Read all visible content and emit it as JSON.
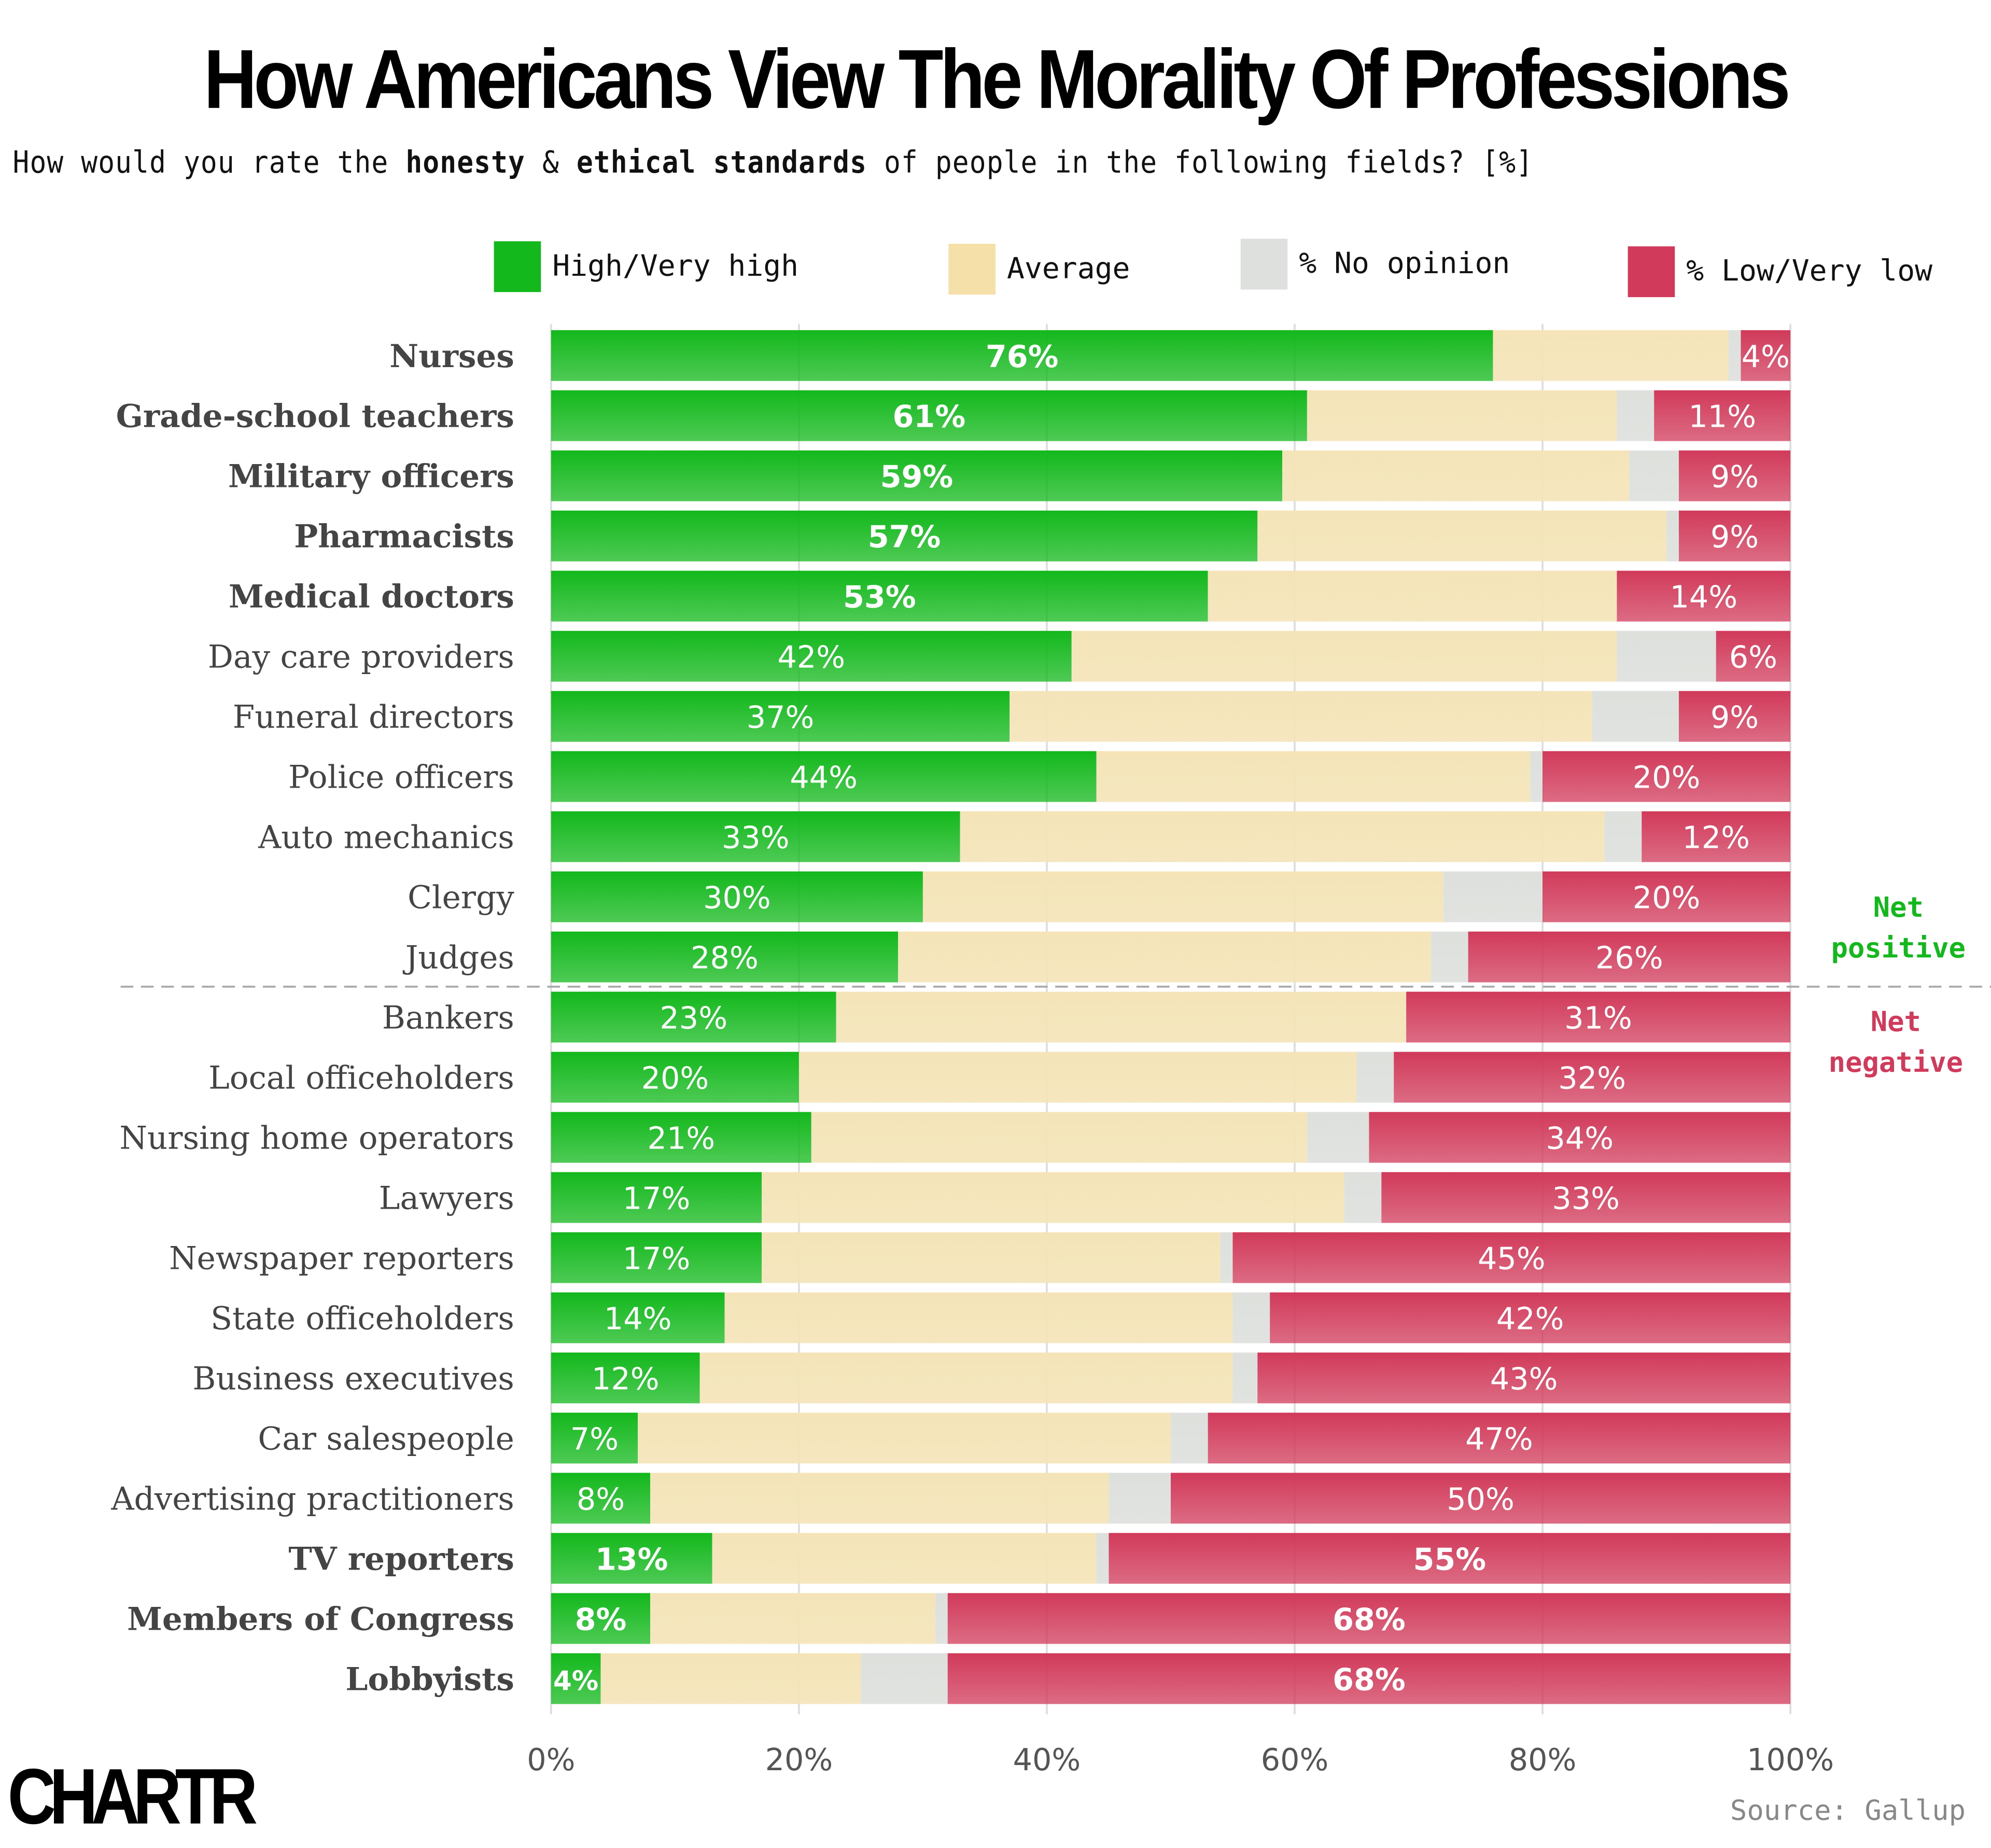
{
  "chart_data": {
    "type": "bar",
    "orientation": "horizontal",
    "stacked": true,
    "title": "How Americans View The Morality Of Professions",
    "subtitle_parts": [
      "How would you rate the ",
      "honesty",
      " & ",
      "ethical standards",
      " of people in the following fields? [%]"
    ],
    "xlim": [
      0,
      100
    ],
    "x_ticks": [
      "0%",
      "20%",
      "40%",
      "60%",
      "80%",
      "100%"
    ],
    "grid": true,
    "legend_placement": "top",
    "categories": [
      "Nurses",
      "Grade-school teachers",
      "Military officers",
      "Pharmacists",
      "Medical doctors",
      "Day care providers",
      "Funeral directors",
      "Police officers",
      "Auto mechanics",
      "Clergy",
      "Judges",
      "Bankers",
      "Local officeholders",
      "Nursing home operators",
      "Lawyers",
      "Newspaper reporters",
      "State officeholders",
      "Business executives",
      "Car salespeople",
      "Advertising practitioners",
      "TV reporters",
      "Members of Congress",
      "Lobbyists"
    ],
    "bold_categories": [
      "Nurses",
      "Grade-school teachers",
      "Military officers",
      "Pharmacists",
      "Medical doctors",
      "TV reporters",
      "Members of Congress",
      "Lobbyists"
    ],
    "series": [
      {
        "name": "High/Very high",
        "color": "#13b81c",
        "values": [
          76,
          61,
          59,
          57,
          53,
          42,
          37,
          44,
          33,
          30,
          28,
          23,
          20,
          21,
          17,
          17,
          14,
          12,
          7,
          8,
          13,
          8,
          4
        ]
      },
      {
        "name": "Average",
        "color": "#f4e4b8",
        "values": [
          19,
          25,
          28,
          33,
          33,
          44,
          47,
          35,
          52,
          42,
          43,
          46,
          45,
          40,
          47,
          37,
          41,
          43,
          43,
          37,
          31,
          23,
          21
        ]
      },
      {
        "name": "% No opinion",
        "color": "#dde0dc",
        "values": [
          1,
          3,
          4,
          1,
          0,
          8,
          7,
          1,
          3,
          8,
          3,
          0,
          3,
          5,
          3,
          1,
          3,
          2,
          3,
          5,
          1,
          1,
          7
        ]
      },
      {
        "name": "% Low/Very low",
        "color": "#d13a5a",
        "values": [
          4,
          11,
          9,
          9,
          14,
          6,
          9,
          20,
          12,
          20,
          26,
          31,
          32,
          34,
          33,
          45,
          42,
          43,
          47,
          50,
          55,
          68,
          68
        ]
      }
    ],
    "data_labels": {
      "high": [
        "76%",
        "61%",
        "59%",
        "57%",
        "53%",
        "42%",
        "37%",
        "44%",
        "33%",
        "30%",
        "28%",
        "23%",
        "20%",
        "21%",
        "17%",
        "17%",
        "14%",
        "12%",
        "7%",
        "8%",
        "13%",
        "8%",
        "4%"
      ],
      "low": [
        "4%",
        "11%",
        "9%",
        "9%",
        "14%",
        "6%",
        "9%",
        "20%",
        "12%",
        "20%",
        "26%",
        "31%",
        "32%",
        "34%",
        "33%",
        "45%",
        "42%",
        "43%",
        "47%",
        "50%",
        "55%",
        "68%",
        "68%"
      ]
    },
    "annotations": {
      "net_positive": [
        "Net",
        "positive"
      ],
      "net_negative": [
        "Net",
        "negative"
      ],
      "positive_color": "#13b81c",
      "negative_color": "#d13a5a"
    }
  },
  "footer": {
    "logo": "CHARTR",
    "source": "Source: Gallup"
  }
}
